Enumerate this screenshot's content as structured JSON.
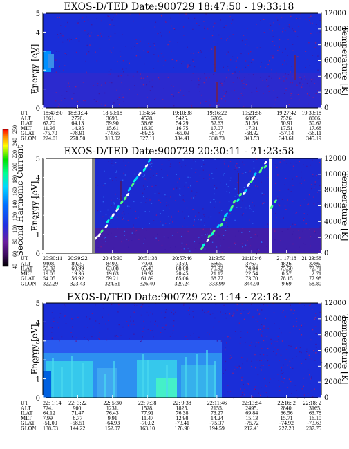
{
  "chart_data": [
    {
      "type": "heatmap",
      "title": "EXOS-D/TED   Date:900729   18:47:50 - 19:33:18",
      "ylabel": "Energy [eV]",
      "y2label": "Temperature [K]",
      "ylim": [
        0,
        5
      ],
      "y_ticks": [
        "0",
        "1",
        "2",
        "3",
        "4",
        "5"
      ],
      "y2lim": [
        0,
        12000
      ],
      "y2_ticks": [
        "0",
        "2000",
        "4000",
        "6000",
        "8000",
        "10000",
        "12000"
      ],
      "ephemeris": {
        "labels": [
          "UT",
          "ALT",
          "ILAT",
          "MLT",
          "GLAT",
          "GLON"
        ],
        "columns": [
          [
            "18:47:50",
            "1861.",
            "67.70",
            "11.96",
            "-75.70",
            "224.01"
          ],
          [
            "18:53:34",
            "2770.",
            "64.13",
            "14.35",
            "-78.91",
            "278.50"
          ],
          [
            "18:59:18",
            "3698.",
            "59.90",
            "15.61",
            "-74.65",
            "313.02"
          ],
          [
            "19:4:54",
            "4578.",
            "56.68",
            "16.30",
            "-69.55",
            "327.11"
          ],
          [
            "19:10:38",
            "5425.",
            "54.29",
            "16.75",
            "-65.03",
            "334.41"
          ],
          [
            "19:16:22",
            "6205.",
            "52.63",
            "17.07",
            "-61.47",
            "338.73"
          ],
          [
            "19:21:58",
            "6895.",
            "51.56",
            "17.31",
            "-58.92",
            "341.53"
          ],
          [
            "19:27:42",
            "7526.",
            "50.91",
            "17.51",
            "-57.14",
            "343.61"
          ],
          [
            "19:33:18",
            "8066.",
            "50.62",
            "17.68",
            "-56.11",
            "345.19"
          ]
        ]
      }
    },
    {
      "type": "heatmap",
      "title": "EXOS-D/TED   Date:900729   20:30:11 - 21:23:58",
      "ylabel": "Energy [eV]",
      "y2label": "Temperature [K]",
      "ylim": [
        0,
        5
      ],
      "y_ticks": [
        "0",
        "1",
        "2",
        "3",
        "4",
        "5"
      ],
      "y2lim": [
        0,
        12000
      ],
      "y2_ticks": [
        "0",
        "2000",
        "4000",
        "6000",
        "8000",
        "10000",
        "12000"
      ],
      "ephemeris": {
        "labels": [
          "UT",
          "ALT",
          "ILAT",
          "MLT",
          "GLAT",
          "GLON"
        ],
        "columns": [
          [
            "20:30:11",
            "9408.",
            "58.32",
            "19.05",
            "54.05",
            "322.29"
          ],
          [
            "20:39:22",
            "8925.",
            "60.99",
            "19.36",
            "56.92",
            "323.43"
          ],
          [
            "20:45:30",
            "8492.",
            "63.08",
            "19.63",
            "59.21",
            "324.61"
          ],
          [
            "20:51:38",
            "7970.",
            "65.43",
            "19.97",
            "61.89",
            "326.40"
          ],
          [
            "20:57:46",
            "7359.",
            "68.08",
            "20.45",
            "65.06",
            "329.24"
          ],
          [
            "21:3:50",
            "6665.",
            "70.92",
            "21.17",
            "68.77",
            "333.99"
          ],
          [
            "21:10:46",
            "3767.",
            "74.04",
            "22.54",
            "73.70",
            "344.90"
          ],
          [
            "21:17:18",
            "4826.",
            "75.50",
            "0.57",
            "78.15",
            "9.69"
          ],
          [
            "21:23:58",
            "3786.",
            "72.71",
            "2.71",
            "77.98",
            "58.80"
          ]
        ]
      }
    },
    {
      "type": "heatmap",
      "title": "EXOS-D/TED   Date:900729   22: 1:14 - 22:18: 2",
      "ylabel": "Energy [eV]",
      "y2label": "Temperature [K]",
      "ylim": [
        0,
        5
      ],
      "y_ticks": [
        "0",
        "1",
        "2",
        "3",
        "4",
        "5"
      ],
      "y2lim": [
        0,
        12000
      ],
      "y2_ticks": [
        "0",
        "2000",
        "4000",
        "6000",
        "8000",
        "10000",
        "12000"
      ],
      "ephemeris": {
        "labels": [
          "UT",
          "ALT",
          "ILAT",
          "MLT",
          "GLAT",
          "GLON"
        ],
        "columns": [
          [
            "22: 1:14",
            "724.",
            "64.12",
            "7.99",
            "-51.00",
            "138.53"
          ],
          [
            "22: 3:22",
            "960.",
            "71.47",
            "8.77",
            "-58.51",
            "144.22"
          ],
          [
            "22: 5:30",
            "1231.",
            "76.43",
            "9.91",
            "-64.93",
            "152.07"
          ],
          [
            "22: 7:38",
            "1528.",
            "77.91",
            "11.47",
            "-70.02",
            "163.10"
          ],
          [
            "22: 9:38",
            "1825.",
            "76.38",
            "12.98",
            "-73.41",
            "176.90"
          ],
          [
            "22:11:46",
            "2155.",
            "73.27",
            "14.24",
            "-75.37",
            "194.59"
          ],
          [
            "22:13:54",
            "2495.",
            "69.84",
            "15.13",
            "-75.72",
            "212.41"
          ],
          [
            "22:16: 2",
            "2840.",
            "66.56",
            "15.71",
            "-74.92",
            "227.28"
          ],
          [
            "22:18: 2",
            "3165.",
            "63.78",
            "16.10",
            "-73.63",
            "237.75"
          ]
        ]
      }
    }
  ],
  "colorbar": {
    "label": "Second Harmonic Current",
    "ticks": [
      "40",
      "60",
      "80",
      "100",
      "120",
      "140",
      "160",
      "180",
      "200",
      "220",
      "240",
      "250"
    ]
  },
  "colors": {
    "background_level": "#1a2ed8",
    "low_level": "#5a1890",
    "high_level": "#00e8ff"
  }
}
